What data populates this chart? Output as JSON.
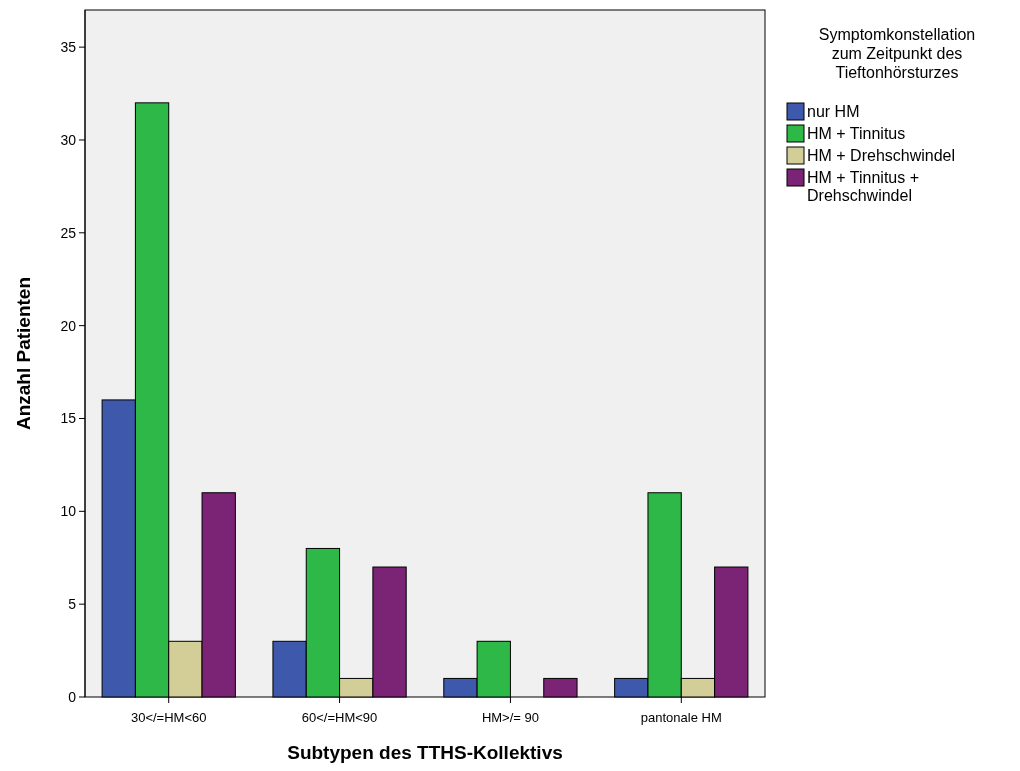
{
  "chart_data": {
    "type": "bar",
    "xlabel": "Subtypen des TTHS-Kollektivs",
    "ylabel": "Anzahl Patienten",
    "legend_title": "Symptomkonstellation zum Zeitpunkt des Tieftonhörsturzes",
    "categories": [
      "30</=HM<60",
      "60</=HM<90",
      "HM>/= 90",
      "pantonale HM"
    ],
    "series": [
      {
        "name": "nur HM",
        "color": "#3e58ac",
        "values": [
          16,
          3,
          1,
          1
        ]
      },
      {
        "name": "HM + Tinnitus",
        "color": "#2eb848",
        "values": [
          32,
          8,
          3,
          11
        ]
      },
      {
        "name": "HM + Drehschwindel",
        "color": "#d3ce97",
        "values": [
          3,
          1,
          0,
          1
        ]
      },
      {
        "name": "HM + Tinnitus + Drehschwindel",
        "color": "#7b2375",
        "values": [
          11,
          7,
          1,
          7
        ]
      }
    ],
    "ylim": [
      0,
      37
    ],
    "yticks": [
      0,
      5,
      10,
      15,
      20,
      25,
      30,
      35
    ],
    "grid": false,
    "legend": "top right"
  }
}
